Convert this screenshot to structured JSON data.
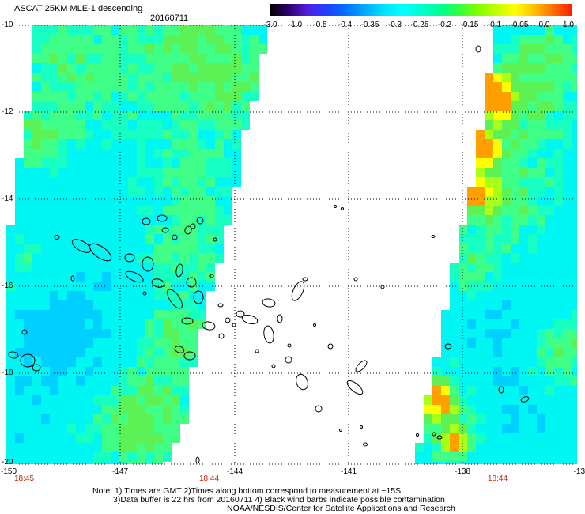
{
  "header": {
    "title": "ASCAT 25KM MLE-1 descending",
    "date": "20160711"
  },
  "colorbar": {
    "labels": [
      "-3.0",
      "-1.0",
      "-0.5",
      "-0.4",
      "-0.35",
      "-0.3",
      "-0.25",
      "-0.2",
      "-0.15",
      "-0.1",
      "-0.05",
      "0.0",
      "1.0"
    ],
    "colors": [
      "#000000",
      "#300070",
      "#5020e0",
      "#2040ff",
      "#0070ff",
      "#00a8ff",
      "#00e0ff",
      "#00ffff",
      "#00ffd0",
      "#00ff98",
      "#30ff40",
      "#80ff00",
      "#c0ff00",
      "#ffff00",
      "#ffc000",
      "#ff7000",
      "#ff2000"
    ]
  },
  "map": {
    "latitude_labels": [
      "-10",
      "-12",
      "-14",
      "-16",
      "-18",
      "-20"
    ],
    "longitude_labels": [
      "-150",
      "-147",
      "-144",
      "-141",
      "-138",
      "-13"
    ],
    "pass_times": [
      "18:45",
      "18:44",
      "18:44"
    ],
    "field_colors": [
      "#00d0ff",
      "#00f6f2",
      "#18ffc4",
      "#40ff88",
      "#5cf255",
      "#a8ff18",
      "#ffff00",
      "#ffa000"
    ],
    "colors": {
      "land_outline": "#000000",
      "grid": "#000000",
      "time_label": "#cc2200"
    }
  },
  "footer": {
    "note_line1": "Note: 1) Times are GMT 2)Times along bottom correspond to measurement at ~15S",
    "note_line2": "3)Data buffer is 22 hrs from 20160711 4) Black wind barbs indicate possible contamination",
    "credit": "NOAA/NESDIS/Center for Satellite Applications and Research"
  }
}
